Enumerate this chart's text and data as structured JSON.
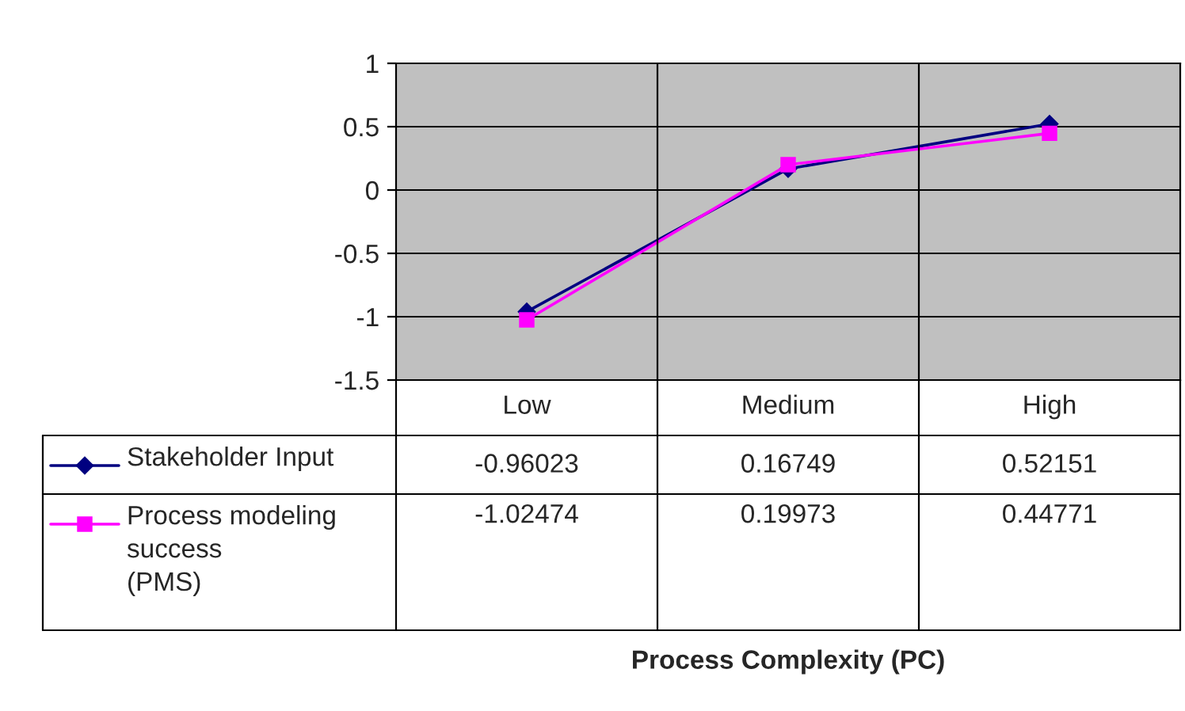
{
  "chart_data": {
    "type": "line",
    "annotations": [
      "Process Complexity (PC)"
    ],
    "categories": [
      "Low",
      "Medium",
      "High"
    ],
    "series": [
      {
        "name": "Stakeholder Input",
        "color": "#000080",
        "marker": "diamond",
        "values": [
          -0.96023,
          0.16749,
          0.52151
        ]
      },
      {
        "name": "Process modeling success\n(PMS)",
        "color": "#ff00ff",
        "marker": "square",
        "values": [
          -1.02474,
          0.19973,
          0.44771
        ]
      }
    ],
    "ylim": [
      -1.5,
      1
    ],
    "yticks": [
      -1.5,
      -1,
      -0.5,
      0,
      0.5,
      1
    ],
    "grid": true,
    "legend": "bottom left",
    "data_labels": true,
    "line_style": "solid"
  }
}
